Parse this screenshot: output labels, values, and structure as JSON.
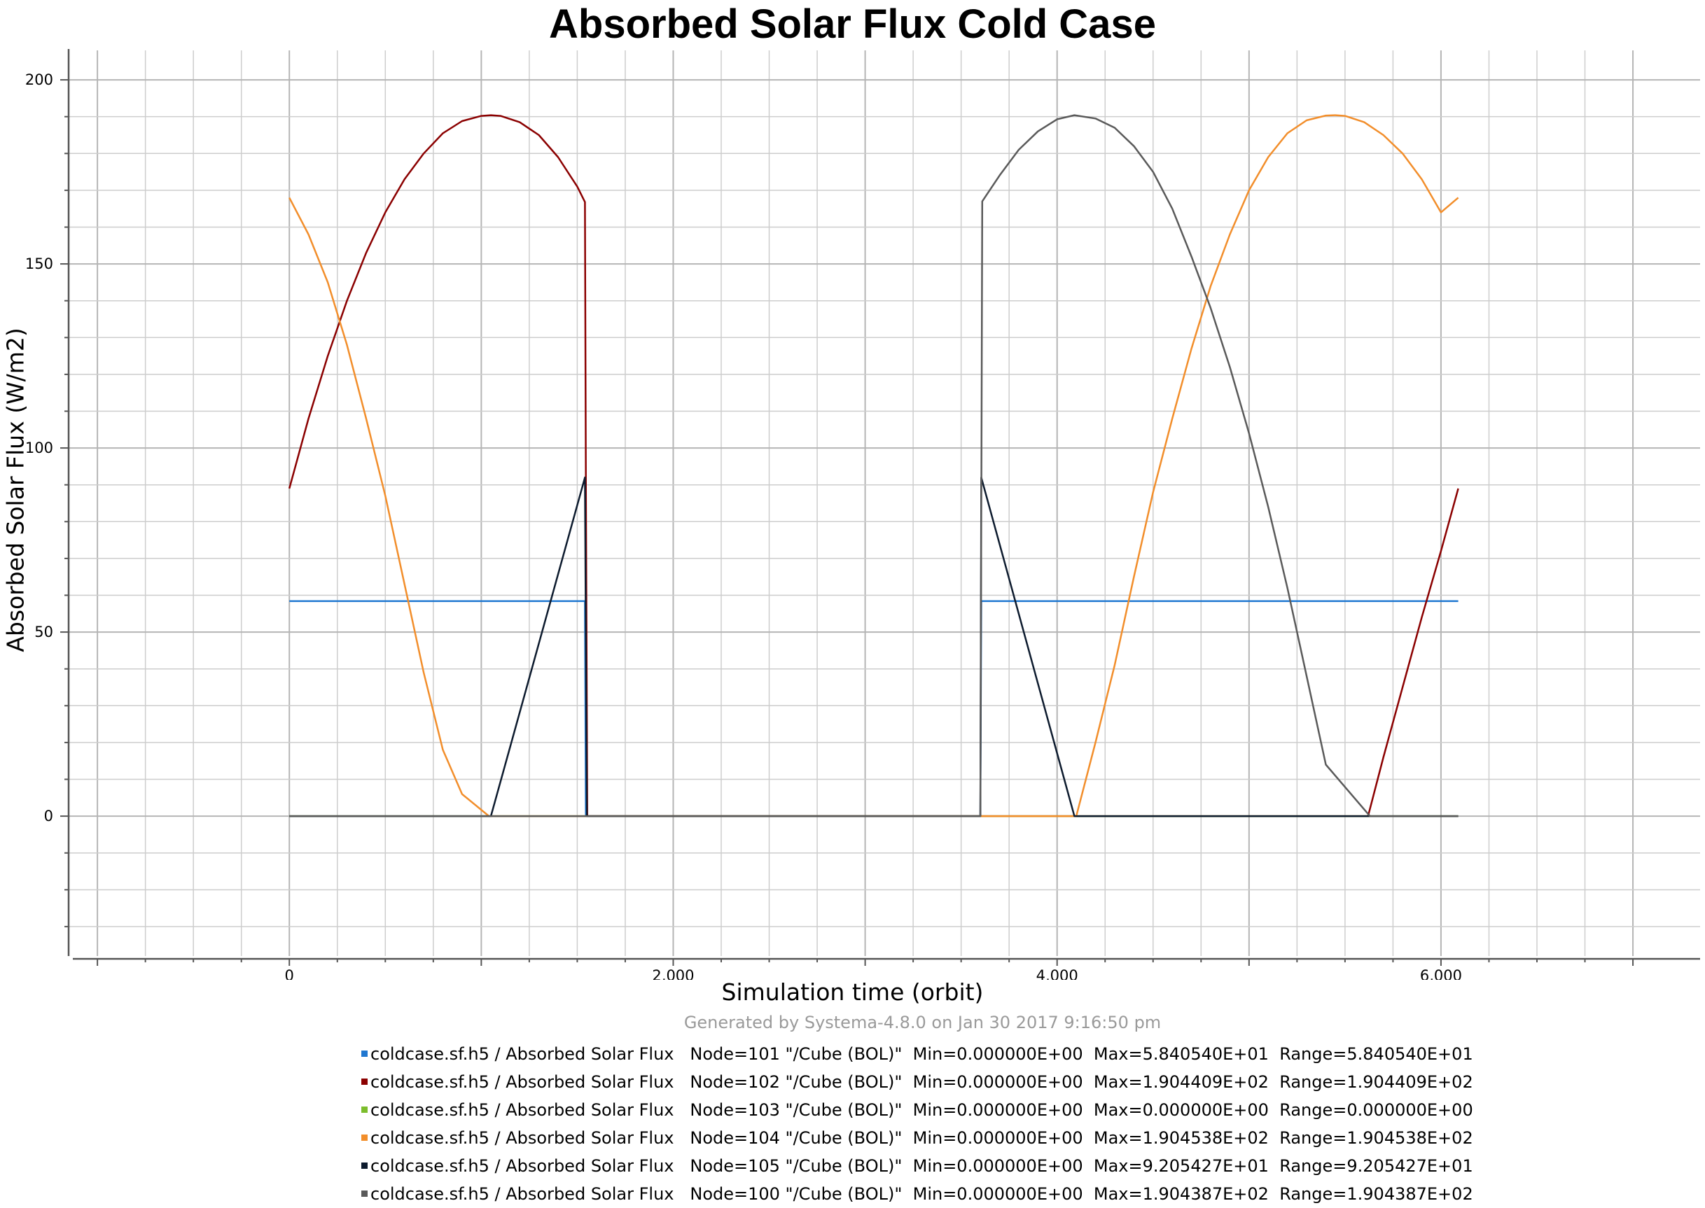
{
  "chart_data": {
    "type": "line",
    "title": "Absorbed Solar Flux Cold Case",
    "xlabel": "Simulation time (orbit)",
    "ylabel": "Absorbed Solar Flux (W/m2)",
    "footer": "Generated by Systema-4.8.0 on Jan 30 2017 9:16:50 pm",
    "xlim": [
      -1150,
      7350
    ],
    "ylim": [
      -38,
      208
    ],
    "x_ticks": [
      0,
      2000,
      4000,
      6000
    ],
    "x_tick_labels": [
      "0",
      "2,000",
      "4,000",
      "6,000"
    ],
    "y_ticks": [
      0,
      50,
      100,
      150,
      200
    ],
    "y_tick_labels": [
      "0",
      "50",
      "100",
      "150",
      "200"
    ],
    "grid": true,
    "legend_position": "bottom",
    "series": [
      {
        "name": "coldcase.sf.h5 / Absorbed Solar Flux   Node=101 \"/Cube (BOL)\"  Min=0.000000E+00  Max=5.840540E+01  Range=5.840540E+01",
        "color": "#1f77d0",
        "points": [
          [
            0,
            58.4
          ],
          [
            1540,
            58.4
          ],
          [
            1545,
            0
          ],
          [
            3600,
            0
          ],
          [
            3605,
            58.4
          ],
          [
            6090,
            58.4
          ]
        ]
      },
      {
        "name": "coldcase.sf.h5 / Absorbed Solar Flux   Node=102 \"/Cube (BOL)\"  Min=0.000000E+00  Max=1.904409E+02  Range=1.904409E+02",
        "color": "#8b0000",
        "points": [
          [
            0,
            89
          ],
          [
            100,
            108
          ],
          [
            200,
            125
          ],
          [
            300,
            140
          ],
          [
            400,
            153
          ],
          [
            500,
            164
          ],
          [
            600,
            173
          ],
          [
            700,
            180
          ],
          [
            800,
            185.5
          ],
          [
            900,
            188.8
          ],
          [
            1000,
            190.2
          ],
          [
            1050,
            190.4
          ],
          [
            1100,
            190.2
          ],
          [
            1200,
            188.5
          ],
          [
            1300,
            185
          ],
          [
            1400,
            179
          ],
          [
            1500,
            171
          ],
          [
            1540,
            166.8
          ],
          [
            1545,
            92
          ],
          [
            1552,
            0
          ],
          [
            5620,
            0
          ],
          [
            5700,
            16
          ],
          [
            5800,
            35
          ],
          [
            5900,
            54
          ],
          [
            6000,
            72
          ],
          [
            6090,
            89
          ]
        ]
      },
      {
        "name": "coldcase.sf.h5 / Absorbed Solar Flux   Node=103 \"/Cube (BOL)\"  Min=0.000000E+00  Max=0.000000E+00  Range=0.000000E+00",
        "color": "#7cbd2c",
        "points": [
          [
            0,
            0
          ],
          [
            6090,
            0
          ]
        ]
      },
      {
        "name": "coldcase.sf.h5 / Absorbed Solar Flux   Node=104 \"/Cube (BOL)\"  Min=0.000000E+00  Max=1.904538E+02  Range=1.904538E+02",
        "color": "#f28e2b",
        "points": [
          [
            0,
            168
          ],
          [
            100,
            158
          ],
          [
            200,
            145
          ],
          [
            300,
            128
          ],
          [
            400,
            108
          ],
          [
            500,
            87
          ],
          [
            600,
            63
          ],
          [
            700,
            39
          ],
          [
            800,
            18
          ],
          [
            900,
            6
          ],
          [
            1040,
            0
          ],
          [
            4100,
            0
          ],
          [
            4200,
            20
          ],
          [
            4300,
            41
          ],
          [
            4400,
            65
          ],
          [
            4500,
            88
          ],
          [
            4600,
            108
          ],
          [
            4700,
            127
          ],
          [
            4800,
            144
          ],
          [
            4900,
            158
          ],
          [
            5000,
            170
          ],
          [
            5100,
            179
          ],
          [
            5200,
            185.5
          ],
          [
            5300,
            189
          ],
          [
            5400,
            190.3
          ],
          [
            5450,
            190.4
          ],
          [
            5500,
            190.2
          ],
          [
            5600,
            188.5
          ],
          [
            5700,
            185
          ],
          [
            5800,
            180
          ],
          [
            5900,
            173
          ],
          [
            6000,
            164
          ],
          [
            6090,
            168
          ]
        ]
      },
      {
        "name": "coldcase.sf.h5 / Absorbed Solar Flux   Node=105 \"/Cube (BOL)\"  Min=0.000000E+00  Max=9.205427E+01  Range=9.205427E+01",
        "color": "#0d1b2e",
        "points": [
          [
            0,
            0
          ],
          [
            1050,
            0
          ],
          [
            1540,
            92
          ],
          [
            1550,
            0
          ],
          [
            3600,
            0
          ],
          [
            3605,
            92
          ],
          [
            4090,
            0
          ],
          [
            6090,
            0
          ]
        ]
      },
      {
        "name": "coldcase.sf.h5 / Absorbed Solar Flux   Node=100 \"/Cube (BOL)\"  Min=0.000000E+00  Max=1.904387E+02  Range=1.904387E+02",
        "color": "#5a5a5a",
        "points": [
          [
            0,
            0
          ],
          [
            3600,
            0
          ],
          [
            3610,
            167
          ],
          [
            3700,
            174
          ],
          [
            3800,
            181
          ],
          [
            3900,
            186
          ],
          [
            4000,
            189.3
          ],
          [
            4090,
            190.4
          ],
          [
            4200,
            189.5
          ],
          [
            4300,
            187
          ],
          [
            4400,
            182
          ],
          [
            4500,
            175
          ],
          [
            4600,
            165
          ],
          [
            4700,
            152
          ],
          [
            4800,
            138
          ],
          [
            4900,
            122
          ],
          [
            5000,
            104
          ],
          [
            5100,
            84
          ],
          [
            5200,
            62
          ],
          [
            5300,
            38
          ],
          [
            5400,
            14
          ],
          [
            5630,
            0
          ],
          [
            6090,
            0
          ]
        ]
      }
    ]
  }
}
